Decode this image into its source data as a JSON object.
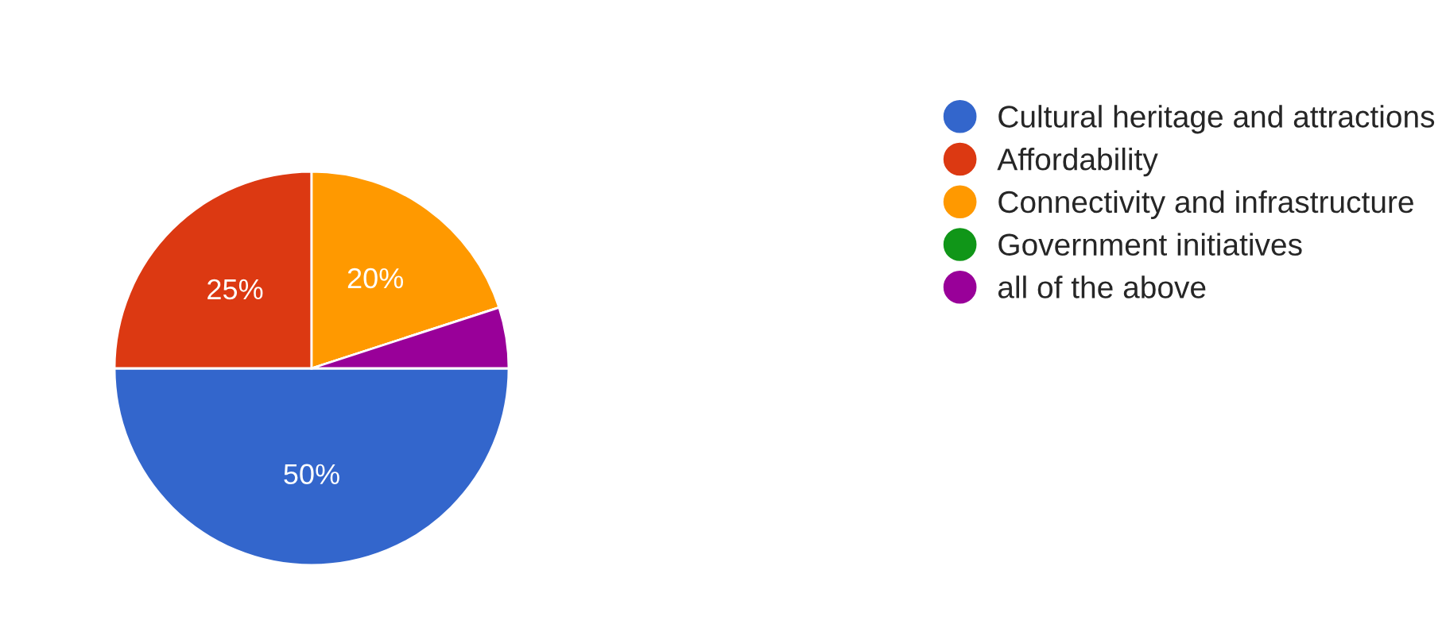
{
  "chart_data": {
    "type": "pie",
    "categories": [
      "Cultural heritage and attractions",
      "Affordability",
      "Connectivity and infrastructure",
      "Government initiatives",
      "all of the above"
    ],
    "values": [
      50,
      25,
      20,
      0,
      5
    ],
    "colors": [
      "#3366cc",
      "#dc3912",
      "#ff9900",
      "#109618",
      "#990099"
    ],
    "value_labels": [
      "50%",
      "25%",
      "20%",
      null,
      null
    ],
    "legend": "right"
  }
}
